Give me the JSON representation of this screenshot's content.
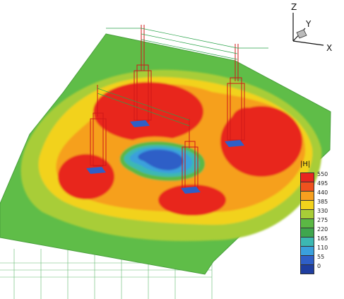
{
  "axis_labels": {
    "z": "Z",
    "y": "Y",
    "x": "X"
  },
  "legend": {
    "title": "|H|",
    "levels": [
      {
        "value": "550",
        "color": "#e8261f"
      },
      {
        "value": "495",
        "color": "#f0521e"
      },
      {
        "value": "440",
        "color": "#f6a01f"
      },
      {
        "value": "385",
        "color": "#f2d21c"
      },
      {
        "value": "330",
        "color": "#a8cd37"
      },
      {
        "value": "275",
        "color": "#5bb844"
      },
      {
        "value": "220",
        "color": "#3fa64e"
      },
      {
        "value": "165",
        "color": "#3cb8b2"
      },
      {
        "value": "110",
        "color": "#3aa0dc"
      },
      {
        "value": "55",
        "color": "#2f5fc7"
      },
      {
        "value": "0",
        "color": "#1f3ea0"
      }
    ]
  },
  "colors": {
    "plate_edge": "#5bb844",
    "field_green": "#5fbd48",
    "tower": "#d01818",
    "pad": "#2f5fc7",
    "wire": "#2aa34a"
  }
}
